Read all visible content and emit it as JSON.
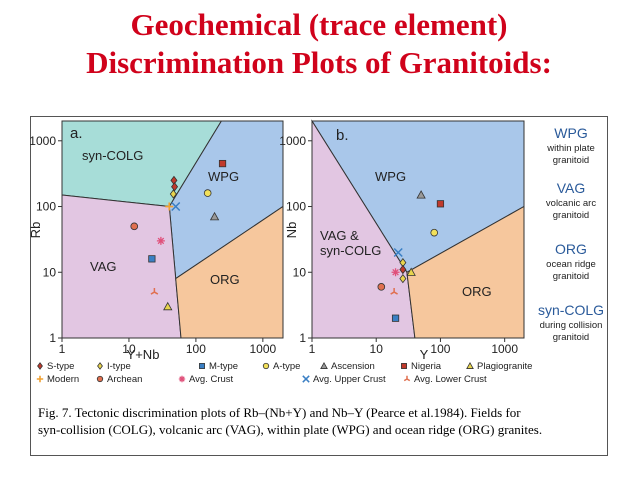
{
  "slide": {
    "title_line1": "Geochemical (trace element)",
    "title_line2": "Discrimination Plots of Granitoids:",
    "caption_line1": "Fig. 7. Tectonic discrimination plots of Rb–(Nb+Y) and Nb–Y (Pearce et al.1984). Fields for",
    "caption_line2": "syn-collision (COLG), volcanic arc (VAG), within plate (WPG) and ocean ridge (ORG) granites."
  },
  "colors": {
    "syn_colg": "#a7ddd8",
    "wpg": "#a9c7ea",
    "org": "#f6c79d",
    "vag": "#e2c6e2",
    "vag_syn_colg": "#e2c6e2"
  },
  "chart_data": [
    {
      "type": "scatter",
      "panel_label": "a.",
      "xlabel": "Y+Nb",
      "ylabel": "Rb",
      "xscale": "log",
      "yscale": "log",
      "xlim": [
        1,
        2000
      ],
      "ylim": [
        1,
        2000
      ],
      "x_ticks": [
        "1",
        "10",
        "100",
        "1000"
      ],
      "y_ticks": [
        "1",
        "10",
        "100",
        "1000"
      ],
      "fields": [
        "syn-COLG",
        "WPG",
        "VAG",
        "ORG"
      ],
      "points": [
        {
          "series": "Nigeria",
          "x": 250,
          "y": 450
        },
        {
          "series": "S-type",
          "x": 47,
          "y": 250
        },
        {
          "series": "S-type",
          "x": 48,
          "y": 200
        },
        {
          "series": "I-type",
          "x": 46,
          "y": 155
        },
        {
          "series": "A-type",
          "x": 150,
          "y": 160
        },
        {
          "series": "Modern",
          "x": 40,
          "y": 100
        },
        {
          "series": "Avg. Upper Crust",
          "x": 50,
          "y": 100
        },
        {
          "series": "Ascension",
          "x": 190,
          "y": 70
        },
        {
          "series": "Archean",
          "x": 12,
          "y": 50
        },
        {
          "series": "Avg. Crust",
          "x": 30,
          "y": 30
        },
        {
          "series": "M-type",
          "x": 22,
          "y": 16
        },
        {
          "series": "Avg. Lower Crust",
          "x": 24,
          "y": 5
        },
        {
          "series": "Plagiogranite",
          "x": 38,
          "y": 3
        }
      ]
    },
    {
      "type": "scatter",
      "panel_label": "b.",
      "xlabel": "Y",
      "ylabel": "Nb",
      "xscale": "log",
      "yscale": "log",
      "xlim": [
        1,
        2000
      ],
      "ylim": [
        1,
        2000
      ],
      "x_ticks": [
        "1",
        "10",
        "100",
        "1000"
      ],
      "y_ticks": [
        "1",
        "10",
        "100",
        "1000"
      ],
      "fields": [
        "WPG",
        "VAG & syn-COLG",
        "ORG"
      ],
      "points": [
        {
          "series": "Ascension",
          "x": 50,
          "y": 150
        },
        {
          "series": "Nigeria",
          "x": 100,
          "y": 110
        },
        {
          "series": "A-type",
          "x": 80,
          "y": 40
        },
        {
          "series": "Avg. Upper Crust",
          "x": 22,
          "y": 20
        },
        {
          "series": "I-type",
          "x": 26,
          "y": 14
        },
        {
          "series": "S-type",
          "x": 26,
          "y": 11
        },
        {
          "series": "Avg. Crust",
          "x": 20,
          "y": 10
        },
        {
          "series": "Plagiogranite",
          "x": 35,
          "y": 10
        },
        {
          "series": "I-type",
          "x": 26,
          "y": 8
        },
        {
          "series": "Archean",
          "x": 12,
          "y": 6
        },
        {
          "series": "Avg. Lower Crust",
          "x": 19,
          "y": 5
        },
        {
          "series": "M-type",
          "x": 20,
          "y": 2
        }
      ]
    }
  ],
  "side_legend": [
    {
      "abbr": "WPG",
      "desc1": "within plate",
      "desc2": "granitoid"
    },
    {
      "abbr": "VAG",
      "desc1": "volcanic arc",
      "desc2": "granitoid"
    },
    {
      "abbr": "ORG",
      "desc1": "ocean ridge",
      "desc2": "granitoid"
    },
    {
      "abbr": "syn-COLG",
      "desc1": "during collision",
      "desc2": "granitoid"
    }
  ],
  "legend": [
    {
      "label": "S-type",
      "symbol": "diamond",
      "color": "#c0392b"
    },
    {
      "label": "I-type",
      "symbol": "diamond",
      "color": "#e8d44d"
    },
    {
      "label": "M-type",
      "symbol": "square",
      "color": "#3a7fc4"
    },
    {
      "label": "A-type",
      "symbol": "circle",
      "color": "#f2e05a"
    },
    {
      "label": "Ascension",
      "symbol": "triangle",
      "color": "#999999"
    },
    {
      "label": "Nigeria",
      "symbol": "square",
      "color": "#c0392b"
    },
    {
      "label": "Plagiogranite",
      "symbol": "triangle",
      "color": "#e8d44d"
    },
    {
      "label": "Modern",
      "symbol": "plus",
      "color": "#f0a030"
    },
    {
      "label": "Archean",
      "symbol": "circle",
      "color": "#e07050"
    },
    {
      "label": "Avg. Crust",
      "symbol": "star",
      "color": "#e0507a"
    },
    {
      "label": "Avg. Upper Crust",
      "symbol": "x",
      "color": "#3a7fc4"
    },
    {
      "label": "Avg. Lower Crust",
      "symbol": "tri-star",
      "color": "#e07050"
    }
  ]
}
